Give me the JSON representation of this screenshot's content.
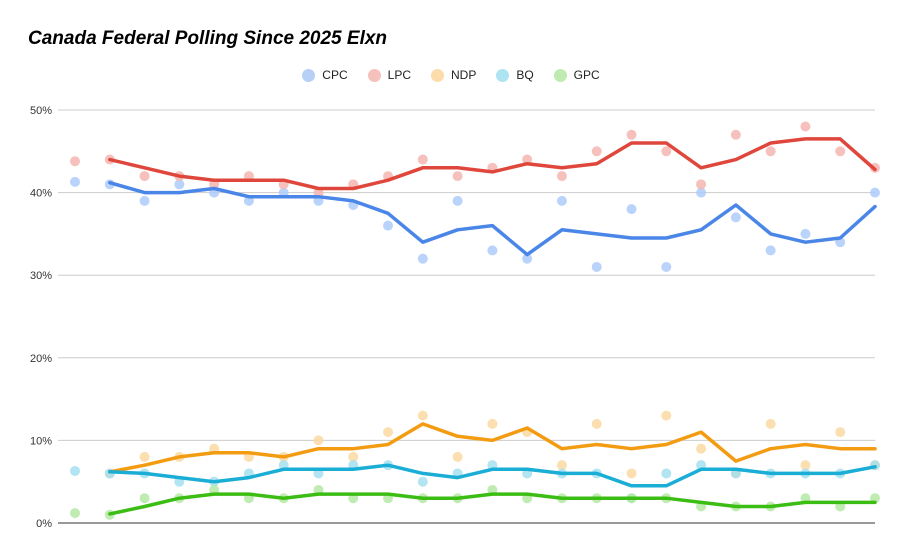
{
  "chart_data": {
    "type": "line",
    "title": "Canada Federal Polling Since 2025 Elxn",
    "ylim": [
      0,
      50
    ],
    "ytick_labels": [
      "0%",
      "10%",
      "20%",
      "30%",
      "40%",
      "50%"
    ],
    "grid": true,
    "legend_position": "top-center",
    "x": [
      0,
      1,
      2,
      3,
      4,
      5,
      6,
      7,
      8,
      9,
      10,
      11,
      12,
      13,
      14,
      15,
      16,
      17,
      18,
      19,
      20,
      21,
      22,
      23
    ],
    "series": [
      {
        "name": "CPC",
        "line_color": "#4a86e8",
        "point_color": "#aecbfa",
        "trend": [
          null,
          41.2,
          40,
          40,
          40.5,
          39.5,
          39.5,
          39.5,
          39,
          37.5,
          34,
          35.5,
          36,
          32.5,
          35.5,
          35,
          34.5,
          34.5,
          35.5,
          38.5,
          35,
          34,
          34.5,
          38.3
        ],
        "points": [
          41.3,
          41,
          39,
          41,
          40,
          39,
          40,
          39,
          38.5,
          36,
          32,
          39,
          33,
          32,
          39,
          31,
          38,
          31,
          40,
          37,
          33,
          35,
          34,
          40
        ]
      },
      {
        "name": "LPC",
        "line_color": "#e0473c",
        "point_color": "#f4b6b1",
        "trend": [
          null,
          44,
          43,
          42,
          41.5,
          41.5,
          41.5,
          40.5,
          40.5,
          41.5,
          43,
          43,
          42.5,
          43.5,
          43,
          43.5,
          46,
          46,
          43,
          44,
          46,
          46.5,
          46.5,
          42.8
        ],
        "points": [
          43.8,
          44,
          42,
          42,
          41,
          42,
          41,
          40,
          41,
          42,
          44,
          42,
          43,
          44,
          42,
          45,
          47,
          45,
          41,
          47,
          45,
          48,
          45,
          43
        ]
      },
      {
        "name": "NDP",
        "line_color": "#f39c12",
        "point_color": "#fcd9a2",
        "trend": [
          null,
          6.2,
          7,
          8,
          8.5,
          8.5,
          8,
          9,
          9,
          9.5,
          12,
          10.5,
          10,
          11.5,
          9,
          9.5,
          9,
          9.5,
          11,
          7.5,
          9,
          9.5,
          9,
          9
        ],
        "points": [
          null,
          6,
          8,
          8,
          9,
          8,
          8,
          10,
          8,
          11,
          13,
          8,
          12,
          11,
          7,
          12,
          6,
          13,
          9,
          6,
          12,
          7,
          11,
          7
        ]
      },
      {
        "name": "BQ",
        "line_color": "#1aaed6",
        "point_color": "#a4dff0",
        "trend": [
          null,
          6.2,
          6,
          5.5,
          5,
          5.5,
          6.5,
          6.5,
          6.5,
          7,
          6,
          5.5,
          6.5,
          6.5,
          6,
          6,
          4.5,
          4.5,
          6.5,
          6.5,
          6,
          6,
          6,
          6.8
        ],
        "points": [
          6.3,
          6,
          6,
          5,
          5,
          6,
          7,
          6,
          7,
          7,
          5,
          6,
          7,
          6,
          6,
          6,
          3,
          6,
          7,
          6,
          6,
          6,
          6,
          7
        ]
      },
      {
        "name": "GPC",
        "line_color": "#3cbd14",
        "point_color": "#b5e7a5",
        "trend": [
          null,
          1.1,
          2,
          3,
          3.5,
          3.5,
          3,
          3.5,
          3.5,
          3.5,
          3,
          3,
          3.5,
          3.5,
          3,
          3,
          3,
          3,
          2.5,
          2,
          2,
          2.5,
          2.5,
          2.5
        ],
        "points": [
          1.2,
          1,
          3,
          3,
          4,
          3,
          3,
          4,
          3,
          3,
          3,
          3,
          4,
          3,
          3,
          3,
          3,
          3,
          2,
          2,
          2,
          3,
          2,
          3
        ]
      }
    ]
  }
}
